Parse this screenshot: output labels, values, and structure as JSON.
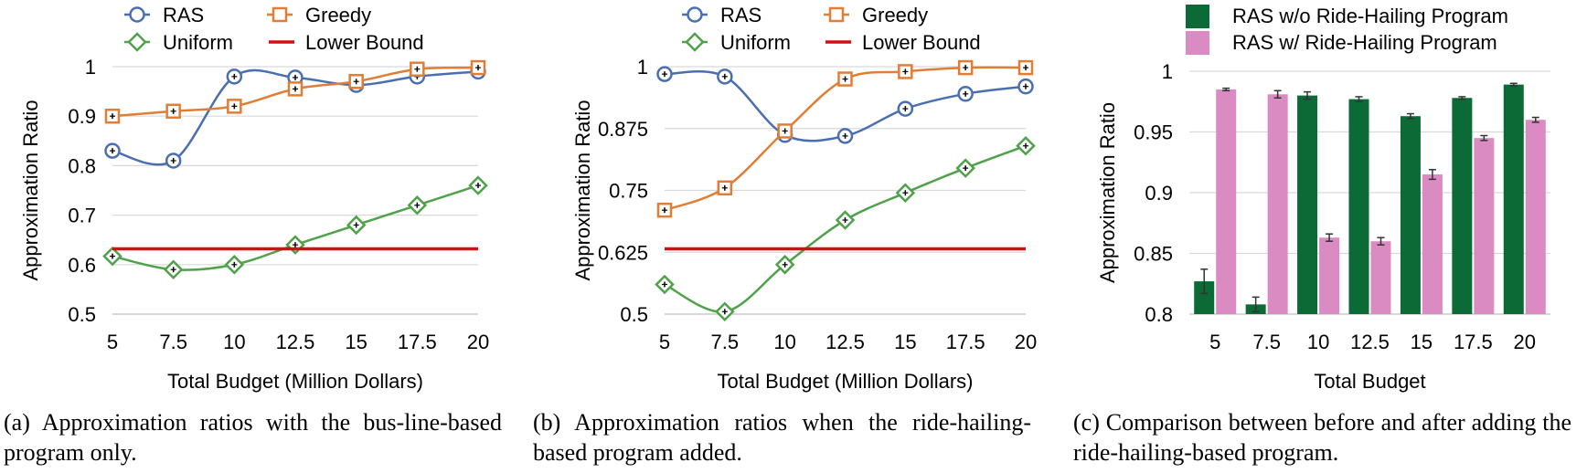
{
  "captions": {
    "a": "(a) Approximation ratios with the bus-line-based program only.",
    "b": "(b) Approximation ratios when the ride-hailing-based program added.",
    "c": "(c) Comparison between before and after adding the ride-hailing-based program."
  },
  "colors": {
    "ras": "#4a6fb0",
    "greedy": "#e07e36",
    "uniform": "#4fa14a",
    "lower_bound": "#d40f14",
    "without": "#0b6a35",
    "with": "#d98bc2",
    "grid": "#d9d9d9"
  },
  "chart_data": [
    {
      "id": "a",
      "type": "line",
      "xlabel": "Total Budget (Million Dollars)",
      "ylabel": "Approximation Ratio",
      "x": [
        5,
        7.5,
        10,
        12.5,
        15,
        17.5,
        20
      ],
      "xticks": [
        "5",
        "7.5",
        "10",
        "12.5",
        "15",
        "17.5",
        "20"
      ],
      "ylim": [
        0.5,
        1
      ],
      "yticks": [
        "0.5",
        "0.6",
        "0.7",
        "0.8",
        "0.9",
        "1"
      ],
      "grid": true,
      "legend": "top",
      "series": [
        {
          "name": "RAS",
          "marker": "circle",
          "values": [
            0.83,
            0.81,
            0.98,
            0.978,
            0.963,
            0.98,
            0.99
          ]
        },
        {
          "name": "Greedy",
          "marker": "square",
          "values": [
            0.9,
            0.91,
            0.92,
            0.955,
            0.97,
            0.995,
            0.998
          ]
        },
        {
          "name": "Uniform",
          "marker": "diamond",
          "values": [
            0.617,
            0.59,
            0.6,
            0.64,
            0.68,
            0.72,
            0.76
          ]
        },
        {
          "name": "Lower Bound",
          "marker": "none",
          "values": [
            0.632,
            0.632,
            0.632,
            0.632,
            0.632,
            0.632,
            0.632
          ]
        }
      ]
    },
    {
      "id": "b",
      "type": "line",
      "xlabel": "Total Budget (Million Dollars)",
      "ylabel": "Approximation Ratio",
      "x": [
        5,
        7.5,
        10,
        12.5,
        15,
        17.5,
        20
      ],
      "xticks": [
        "5",
        "7.5",
        "10",
        "12.5",
        "15",
        "17.5",
        "20"
      ],
      "ylim": [
        0.5,
        1
      ],
      "yticks": [
        "0.5",
        "0.625",
        "0.75",
        "0.875",
        "1"
      ],
      "grid": true,
      "legend": "top",
      "series": [
        {
          "name": "RAS",
          "marker": "circle",
          "values": [
            0.985,
            0.98,
            0.862,
            0.86,
            0.915,
            0.945,
            0.96
          ]
        },
        {
          "name": "Greedy",
          "marker": "square",
          "values": [
            0.71,
            0.755,
            0.87,
            0.975,
            0.99,
            0.998,
            0.998
          ]
        },
        {
          "name": "Uniform",
          "marker": "diamond",
          "values": [
            0.56,
            0.505,
            0.6,
            0.69,
            0.745,
            0.795,
            0.84
          ]
        },
        {
          "name": "Lower Bound",
          "marker": "none",
          "values": [
            0.632,
            0.632,
            0.632,
            0.632,
            0.632,
            0.632,
            0.632
          ]
        }
      ]
    },
    {
      "id": "c",
      "type": "bar",
      "xlabel": "Total Budget",
      "ylabel": "Approximation Ratio",
      "categories": [
        "5",
        "7.5",
        "10",
        "12.5",
        "15",
        "17.5",
        "20"
      ],
      "ylim": [
        0.8,
        1
      ],
      "yticks": [
        "0.8",
        "0.85",
        "0.9",
        "0.95",
        "1"
      ],
      "grid": true,
      "legend": "top",
      "series": [
        {
          "name": "RAS w/o Ride-Hailing Program",
          "values": [
            0.827,
            0.808,
            0.98,
            0.977,
            0.963,
            0.978,
            0.989
          ],
          "errors": [
            0.01,
            0.006,
            0.003,
            0.002,
            0.002,
            0.001,
            0.001
          ]
        },
        {
          "name": "RAS w/ Ride-Hailing Program",
          "values": [
            0.985,
            0.981,
            0.863,
            0.86,
            0.915,
            0.945,
            0.96
          ],
          "errors": [
            0.001,
            0.003,
            0.003,
            0.003,
            0.004,
            0.002,
            0.002
          ]
        }
      ]
    }
  ]
}
